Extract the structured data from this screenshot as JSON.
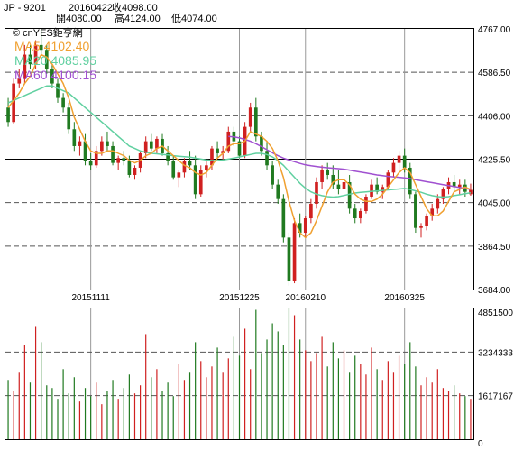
{
  "header": {
    "symbol": "JP - 9201",
    "date": "20160422",
    "close_label": "收4098.00",
    "open_label": "開4080.00",
    "high_label": "高4124.00",
    "low_label": "低4074.00"
  },
  "watermark": "© cnYES鉅亨網",
  "legend": [
    {
      "label": "MA5 4102.40",
      "color": "#f0a030"
    },
    {
      "label": "MA20 4085.95",
      "color": "#60d0a0"
    },
    {
      "label": "MA60 4100.15",
      "color": "#a050d0"
    }
  ],
  "colors": {
    "up": "#d02020",
    "down": "#207a20",
    "grid": "#888888",
    "frame": "#000000"
  },
  "chart_data": [
    {
      "type": "candlestick",
      "ylim": [
        3684.0,
        4767.0
      ],
      "y_ticks": [
        "4767.00",
        "4586.50",
        "4406.00",
        "4225.50",
        "4045.00",
        "3864.50",
        "3684.00"
      ],
      "x_ticks": [
        "20151111",
        "20151225",
        "20160210",
        "20160325"
      ],
      "ohlc": [
        [
          4440,
          4480,
          4360,
          4380
        ],
        [
          4380,
          4560,
          4370,
          4540
        ],
        [
          4540,
          4600,
          4520,
          4560
        ],
        [
          4560,
          4700,
          4540,
          4660
        ],
        [
          4660,
          4700,
          4600,
          4620
        ],
        [
          4620,
          4720,
          4600,
          4700
        ],
        [
          4700,
          4767,
          4660,
          4680
        ],
        [
          4680,
          4700,
          4580,
          4600
        ],
        [
          4600,
          4620,
          4520,
          4540
        ],
        [
          4540,
          4560,
          4460,
          4480
        ],
        [
          4480,
          4500,
          4420,
          4440
        ],
        [
          4440,
          4460,
          4330,
          4350
        ],
        [
          4350,
          4380,
          4260,
          4280
        ],
        [
          4280,
          4320,
          4240,
          4300
        ],
        [
          4300,
          4330,
          4200,
          4220
        ],
        [
          4220,
          4250,
          4180,
          4200
        ],
        [
          4200,
          4280,
          4190,
          4260
        ],
        [
          4260,
          4320,
          4240,
          4300
        ],
        [
          4300,
          4340,
          4260,
          4280
        ],
        [
          4280,
          4300,
          4200,
          4210
        ],
        [
          4210,
          4240,
          4180,
          4230
        ],
        [
          4230,
          4260,
          4200,
          4220
        ],
        [
          4220,
          4240,
          4150,
          4160
        ],
        [
          4160,
          4200,
          4140,
          4190
        ],
        [
          4190,
          4260,
          4170,
          4250
        ],
        [
          4250,
          4320,
          4230,
          4300
        ],
        [
          4300,
          4330,
          4260,
          4270
        ],
        [
          4270,
          4320,
          4250,
          4310
        ],
        [
          4310,
          4330,
          4240,
          4250
        ],
        [
          4250,
          4280,
          4200,
          4220
        ],
        [
          4220,
          4240,
          4140,
          4150
        ],
        [
          4150,
          4180,
          4110,
          4170
        ],
        [
          4170,
          4230,
          4150,
          4220
        ],
        [
          4220,
          4260,
          4180,
          4200
        ],
        [
          4200,
          4240,
          4060,
          4080
        ],
        [
          4080,
          4200,
          4070,
          4180
        ],
        [
          4180,
          4220,
          4150,
          4200
        ],
        [
          4200,
          4280,
          4180,
          4270
        ],
        [
          4270,
          4300,
          4230,
          4250
        ],
        [
          4250,
          4280,
          4220,
          4260
        ],
        [
          4260,
          4360,
          4250,
          4340
        ],
        [
          4340,
          4360,
          4280,
          4300
        ],
        [
          4300,
          4320,
          4230,
          4240
        ],
        [
          4240,
          4380,
          4230,
          4360
        ],
        [
          4360,
          4460,
          4340,
          4440
        ],
        [
          4440,
          4480,
          4300,
          4320
        ],
        [
          4320,
          4340,
          4240,
          4260
        ],
        [
          4260,
          4300,
          4180,
          4200
        ],
        [
          4200,
          4220,
          4100,
          4120
        ],
        [
          4120,
          4140,
          4040,
          4060
        ],
        [
          4060,
          4080,
          3880,
          3900
        ],
        [
          3900,
          3920,
          3700,
          3720
        ],
        [
          3720,
          3980,
          3710,
          3960
        ],
        [
          3960,
          4000,
          3900,
          3920
        ],
        [
          3920,
          3990,
          3900,
          3980
        ],
        [
          3980,
          4060,
          3960,
          4040
        ],
        [
          4040,
          4150,
          4020,
          4130
        ],
        [
          4130,
          4200,
          4100,
          4180
        ],
        [
          4180,
          4210,
          4140,
          4160
        ],
        [
          4160,
          4200,
          4100,
          4120
        ],
        [
          4120,
          4180,
          4080,
          4100
        ],
        [
          4100,
          4140,
          4060,
          4130
        ],
        [
          4130,
          4160,
          4000,
          4020
        ],
        [
          4020,
          4040,
          3960,
          3980
        ],
        [
          3980,
          4020,
          3960,
          4010
        ],
        [
          4010,
          4080,
          4000,
          4070
        ],
        [
          4070,
          4140,
          4060,
          4120
        ],
        [
          4120,
          4150,
          4080,
          4090
        ],
        [
          4090,
          4120,
          4060,
          4110
        ],
        [
          4110,
          4180,
          4100,
          4170
        ],
        [
          4170,
          4230,
          4150,
          4210
        ],
        [
          4210,
          4260,
          4180,
          4240
        ],
        [
          4240,
          4270,
          4170,
          4190
        ],
        [
          4190,
          4210,
          4060,
          4080
        ],
        [
          4080,
          4090,
          3920,
          3940
        ],
        [
          3940,
          3960,
          3900,
          3950
        ],
        [
          3950,
          4000,
          3930,
          3990
        ],
        [
          3990,
          4040,
          3970,
          4020
        ],
        [
          4020,
          4080,
          4000,
          4060
        ],
        [
          4060,
          4110,
          4040,
          4100
        ],
        [
          4100,
          4150,
          4080,
          4130
        ],
        [
          4130,
          4160,
          4090,
          4110
        ],
        [
          4110,
          4140,
          4080,
          4120
        ],
        [
          4120,
          4140,
          4070,
          4090
        ],
        [
          4080,
          4124,
          4074,
          4098
        ]
      ],
      "ma5": [
        4440,
        4470,
        4500,
        4540,
        4570,
        4620,
        4660,
        4650,
        4620,
        4580,
        4540,
        4480,
        4400,
        4350,
        4300,
        4260,
        4250,
        4250,
        4260,
        4260,
        4250,
        4240,
        4220,
        4210,
        4220,
        4240,
        4250,
        4270,
        4280,
        4260,
        4240,
        4220,
        4200,
        4190,
        4170,
        4160,
        4170,
        4200,
        4230,
        4250,
        4280,
        4290,
        4290,
        4300,
        4340,
        4330,
        4320,
        4300,
        4270,
        4220,
        4150,
        4050,
        3970,
        3920,
        3900,
        3920,
        3970,
        4030,
        4090,
        4130,
        4140,
        4140,
        4120,
        4080,
        4060,
        4050,
        4050,
        4060,
        4080,
        4110,
        4140,
        4170,
        4190,
        4170,
        4120,
        4070,
        4020,
        3990,
        3990,
        4010,
        4050,
        4090,
        4100,
        4110,
        4100
      ],
      "ma20": [
        4460,
        4470,
        4480,
        4490,
        4500,
        4510,
        4520,
        4530,
        4530,
        4520,
        4510,
        4500,
        4480,
        4460,
        4440,
        4420,
        4400,
        4380,
        4360,
        4340,
        4320,
        4300,
        4280,
        4270,
        4260,
        4255,
        4250,
        4248,
        4245,
        4243,
        4240,
        4238,
        4236,
        4234,
        4230,
        4226,
        4222,
        4220,
        4220,
        4222,
        4226,
        4230,
        4235,
        4240,
        4245,
        4250,
        4250,
        4245,
        4235,
        4220,
        4200,
        4175,
        4150,
        4125,
        4105,
        4090,
        4080,
        4074,
        4070,
        4068,
        4070,
        4075,
        4080,
        4085,
        4088,
        4090,
        4092,
        4094,
        4096,
        4098,
        4100,
        4102,
        4104,
        4100,
        4094,
        4088,
        4080,
        4074,
        4070,
        4068,
        4070,
        4074,
        4078,
        4082,
        4086
      ],
      "ma60": [
        null,
        null,
        null,
        null,
        null,
        null,
        null,
        null,
        null,
        null,
        null,
        null,
        null,
        null,
        null,
        null,
        null,
        null,
        null,
        null,
        null,
        null,
        null,
        null,
        null,
        null,
        null,
        null,
        null,
        null,
        null,
        null,
        null,
        null,
        null,
        null,
        null,
        null,
        null,
        null,
        4320,
        4318,
        4314,
        4308,
        4300,
        4290,
        4278,
        4265,
        4252,
        4240,
        4230,
        4222,
        4215,
        4208,
        4202,
        4198,
        4195,
        4192,
        4190,
        4188,
        4186,
        4184,
        4180,
        4176,
        4172,
        4168,
        4164,
        4160,
        4157,
        4154,
        4152,
        4150,
        4148,
        4145,
        4140,
        4136,
        4132,
        4128,
        4124,
        4120,
        4116,
        4112,
        4108,
        4104,
        4100
      ],
      "first_ma60_index": 40,
      "x_tick_indices": [
        15,
        42,
        54,
        72
      ]
    },
    {
      "type": "bar",
      "ylim": [
        0,
        4851500
      ],
      "y_ticks": [
        "4851500",
        "3234333",
        "1617167",
        "0"
      ],
      "values": [
        2200000,
        1800000,
        2500000,
        3500000,
        2100000,
        4200000,
        3600000,
        2000000,
        1900000,
        1500000,
        2600000,
        1700000,
        2300000,
        1400000,
        1900000,
        1600000,
        2100000,
        1300000,
        1800000,
        2200000,
        1500000,
        1900000,
        2400000,
        1700000,
        2000000,
        3900000,
        2300000,
        2600000,
        1800000,
        2100000,
        1600000,
        2800000,
        2200000,
        2500000,
        3600000,
        2900000,
        2300000,
        2700000,
        3400000,
        2500000,
        3000000,
        3800000,
        3100000,
        4100000,
        2600000,
        4800000,
        3200000,
        3700000,
        4300000,
        4000000,
        3500000,
        4851500,
        4600000,
        3700000,
        3300000,
        2900000,
        3200000,
        3800000,
        2700000,
        3600000,
        3000000,
        3300000,
        2500000,
        3100000,
        2800000,
        2400000,
        3400000,
        2600000,
        2200000,
        2900000,
        2500000,
        3100000,
        2800000,
        3600000,
        2700000,
        2000000,
        2300000,
        2100000,
        2600000,
        1900000,
        1800000,
        2000000,
        1700000,
        1600000,
        1500000
      ]
    }
  ]
}
